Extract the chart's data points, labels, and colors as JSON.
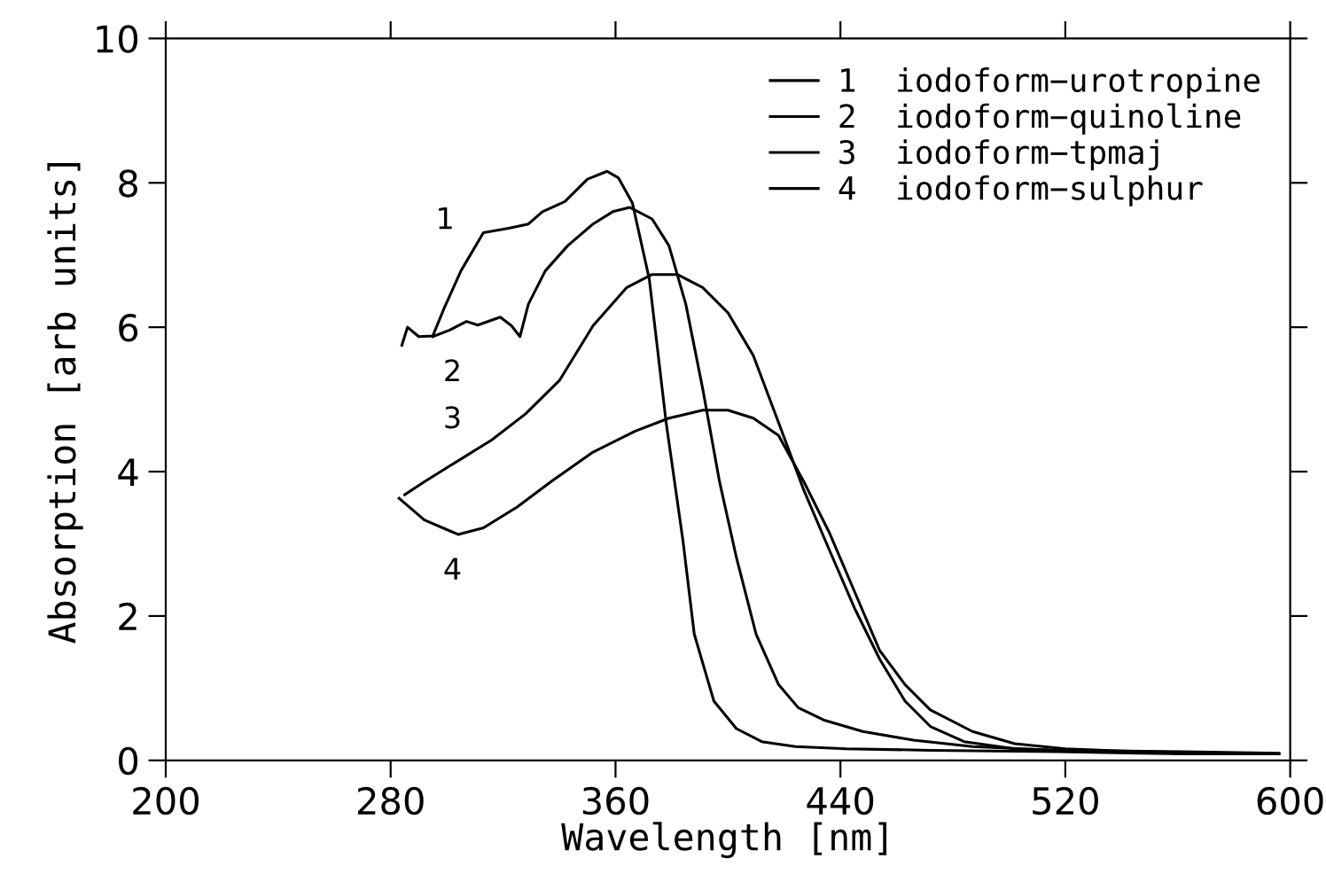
{
  "chart_data": {
    "type": "line",
    "xlabel": "Wavelength [nm]",
    "ylabel": "Absorption [arb units]",
    "xlim": [
      200,
      600
    ],
    "xticks": [
      200,
      280,
      360,
      440,
      520,
      600
    ],
    "ylim": [
      0,
      10
    ],
    "yticks": [
      0,
      2,
      4,
      6,
      8,
      10
    ],
    "grid": false,
    "legend": "top right",
    "marker": "none",
    "line_style": "solid",
    "series": [
      {
        "name": "1  iodoform−urotropine",
        "color": "#000000",
        "x": [
          284,
          286,
          290,
          295,
          299,
          305,
          313,
          322,
          329,
          334,
          342,
          350,
          357,
          361,
          366,
          372,
          378,
          384,
          388,
          395,
          403,
          412,
          424,
          442,
          472,
          517,
          562,
          596
        ],
        "values": [
          5.75,
          6.0,
          5.87,
          5.88,
          6.26,
          6.78,
          7.31,
          7.37,
          7.43,
          7.6,
          7.74,
          8.05,
          8.16,
          8.07,
          7.72,
          6.67,
          4.68,
          3.04,
          1.75,
          0.82,
          0.44,
          0.26,
          0.19,
          0.16,
          0.14,
          0.12,
          0.09,
          0.09
        ]
      },
      {
        "name": "2  iodoform−quinoline",
        "color": "#000000",
        "x": [
          295,
          301,
          307,
          311,
          319,
          323,
          326,
          329,
          335,
          343,
          352,
          359,
          365,
          373,
          379,
          385,
          391,
          397,
          403,
          410,
          418,
          425,
          434,
          448,
          466,
          487,
          517,
          562,
          596
        ],
        "values": [
          5.87,
          5.96,
          6.08,
          6.03,
          6.14,
          6.02,
          5.87,
          6.32,
          6.78,
          7.13,
          7.43,
          7.6,
          7.66,
          7.5,
          7.13,
          6.32,
          5.15,
          3.86,
          2.81,
          1.75,
          1.05,
          0.73,
          0.56,
          0.4,
          0.28,
          0.19,
          0.14,
          0.12,
          0.1
        ]
      },
      {
        "name": "3  iodoform−tpmaj",
        "color": "#000000",
        "x": [
          285,
          292,
          304,
          316,
          328,
          340,
          352,
          364,
          373,
          382,
          391,
          400,
          409,
          418,
          427,
          436,
          445,
          454,
          463,
          472,
          484,
          502,
          532,
          562,
          593
        ],
        "values": [
          3.68,
          3.86,
          4.15,
          4.44,
          4.8,
          5.26,
          6.02,
          6.55,
          6.73,
          6.73,
          6.55,
          6.2,
          5.61,
          4.68,
          3.74,
          2.92,
          2.11,
          1.4,
          0.82,
          0.47,
          0.26,
          0.16,
          0.12,
          0.1,
          0.1
        ]
      },
      {
        "name": "4  iodoform−sulphur",
        "color": "#000000",
        "x": [
          283,
          292,
          304,
          313,
          325,
          337,
          352,
          367,
          379,
          391,
          400,
          409,
          418,
          427,
          436,
          445,
          454,
          463,
          472,
          487,
          502,
          520,
          547,
          596
        ],
        "values": [
          3.63,
          3.33,
          3.13,
          3.22,
          3.51,
          3.86,
          4.27,
          4.56,
          4.74,
          4.85,
          4.85,
          4.74,
          4.5,
          3.86,
          3.16,
          2.34,
          1.52,
          1.05,
          0.7,
          0.4,
          0.23,
          0.16,
          0.12,
          0.09
        ]
      }
    ],
    "annotations": [
      "1",
      "2",
      "3",
      "4"
    ]
  }
}
